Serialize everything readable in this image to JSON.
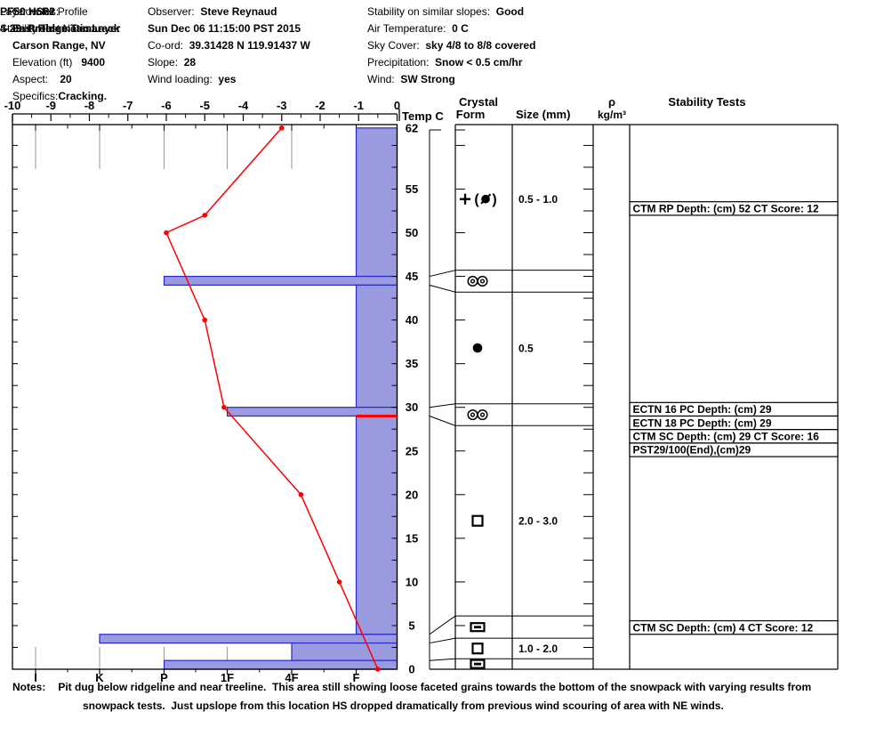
{
  "header": {
    "columns": [
      {
        "name": "location",
        "lines": [
          [
            {
              "t": "Snow Pit Profile",
              "b": false
            }
          ],
          [
            {
              "t": "East Ridge Tamarack",
              "b": true
            }
          ],
          [
            {
              "t": "Carson Range, NV",
              "b": true
            }
          ],
          [
            {
              "t": "Elevation (ft)   ",
              "b": false
            },
            {
              "t": "9400",
              "b": true
            }
          ],
          [
            {
              "t": "Aspect:    ",
              "b": false
            },
            {
              "t": "20",
              "b": true
            }
          ],
          [
            {
              "t": "Specifics:",
              "b": false
            },
            {
              "t": "Cracking.",
              "b": true
            }
          ]
        ]
      },
      {
        "name": "observer",
        "lines": [
          [
            {
              "t": "Observer:  ",
              "b": false
            },
            {
              "t": "Steve Reynaud",
              "b": true
            }
          ],
          [
            {
              "t": "Sun Dec 06 11:15:00 PST 2015",
              "b": true
            }
          ],
          [
            {
              "t": "Co-ord:  ",
              "b": false
            },
            {
              "t": "39.31428 N 119.91437 W",
              "b": true
            }
          ],
          [
            {
              "t": "Slope:  ",
              "b": false
            },
            {
              "t": "28",
              "b": true
            }
          ],
          [
            {
              "t": "Wind loading:  ",
              "b": false
            },
            {
              "t": "yes",
              "b": true
            }
          ]
        ]
      },
      {
        "name": "conditions",
        "lines": [
          [
            {
              "t": "Stability on similar slopes:  ",
              "b": false
            },
            {
              "t": "Good",
              "b": true
            }
          ],
          [
            {
              "t": "Air Temperature:  ",
              "b": false
            },
            {
              "t": "0 C",
              "b": true
            }
          ],
          [
            {
              "t": "Sky Cover:  ",
              "b": false
            },
            {
              "t": "sky 4/8 to 8/8 covered",
              "b": true
            }
          ],
          [
            {
              "t": "Precipitation:  ",
              "b": false
            },
            {
              "t": "Snow < 0.5 cm/hr",
              "b": true
            }
          ],
          [
            {
              "t": "Wind:  ",
              "b": false
            },
            {
              "t": "SW Strong",
              "b": true
            }
          ]
        ]
      },
      {
        "name": "pit-info",
        "lines": [
          [
            {
              "t": "PF50 HS62",
              "b": true
            }
          ],
          [
            {
              "t": "Stability Test Notes:",
              "b": false
            }
          ]
        ]
      },
      {
        "name": "layer-notes",
        "lines": [
          [
            {
              "t": "Layer notes:",
              "b": false
            }
          ],
          [
            {
              "t": "4-29: Problematic Layer",
              "b": true
            }
          ]
        ]
      }
    ]
  },
  "chart_data": {
    "type": "bar",
    "title": "Snow Pit Profile",
    "description": "Snow pit profile: hand-hardness bar profile vs depth, snow temperature line, crystal form/size per layer, stability tests",
    "depth_axis": {
      "unit": "cm",
      "surface_cm": 62,
      "base_cm": 0,
      "tick_labels": [
        62,
        55,
        50,
        45,
        40,
        35,
        30,
        25,
        20,
        15,
        10,
        5,
        0
      ]
    },
    "temperature_axis": {
      "label": "Temp C",
      "min": -10,
      "max": 0,
      "tick_labels": [
        -10,
        -9,
        -8,
        -7,
        -6,
        -5,
        -4,
        -3,
        -2,
        -1,
        0
      ]
    },
    "hardness_axis": {
      "tick_labels": [
        "I",
        "K",
        "P",
        "1F",
        "4F",
        "F"
      ]
    },
    "column_headers": {
      "temp": "Temp C",
      "crystal_line1": "Crystal",
      "crystal_line2": "Form",
      "size": "Size (mm)",
      "rho_line1": "ρ",
      "rho_line2": "kg/m³",
      "stability": "Stability Tests"
    },
    "temperature_profile": [
      {
        "depth_cm": 62,
        "temp_c": -3.0
      },
      {
        "depth_cm": 52,
        "temp_c": -5.0
      },
      {
        "depth_cm": 50,
        "temp_c": -6.0
      },
      {
        "depth_cm": 40,
        "temp_c": -5.0
      },
      {
        "depth_cm": 30,
        "temp_c": -4.5
      },
      {
        "depth_cm": 20,
        "temp_c": -2.5
      },
      {
        "depth_cm": 10,
        "temp_c": -1.5
      },
      {
        "depth_cm": 0,
        "temp_c": -0.5
      }
    ],
    "layers": [
      {
        "top_cm": 62,
        "bottom_cm": 45,
        "hardness": "F",
        "crystal_form": "precipitation-particles-decomposing",
        "symbol": "plus-df",
        "size_mm": "0.5 - 1.0",
        "row_top_cm": 62,
        "row_bottom_cm": 45.7
      },
      {
        "top_cm": 45,
        "bottom_cm": 44,
        "hardness": "P",
        "crystal_form": "melt-freeze-crust",
        "symbol": "double-circle",
        "size_mm": "",
        "row_top_cm": 45.7,
        "row_bottom_cm": 43.2
      },
      {
        "top_cm": 44,
        "bottom_cm": 30,
        "hardness": "F",
        "crystal_form": "rounded-grains",
        "symbol": "filled-circle",
        "size_mm": "0.5",
        "row_top_cm": 43.2,
        "row_bottom_cm": 30.4
      },
      {
        "top_cm": 30,
        "bottom_cm": 29,
        "hardness": "1F",
        "crystal_form": "melt-freeze-crust",
        "symbol": "double-circle",
        "size_mm": "",
        "row_top_cm": 30.4,
        "row_bottom_cm": 27.9
      },
      {
        "top_cm": 29,
        "bottom_cm": 4,
        "hardness": "F",
        "crystal_form": "facets",
        "symbol": "open-square",
        "size_mm": "2.0 - 3.0",
        "row_top_cm": 27.9,
        "row_bottom_cm": 6.1
      },
      {
        "top_cm": 4,
        "bottom_cm": 3,
        "hardness": "K",
        "crystal_form": "crust",
        "symbol": "crust-bar",
        "size_mm": "",
        "row_top_cm": 6.1,
        "row_bottom_cm": 3.55
      },
      {
        "top_cm": 3,
        "bottom_cm": 1,
        "hardness": "4F",
        "crystal_form": "facets",
        "symbol": "open-square",
        "size_mm": "1.0 - 2.0",
        "row_top_cm": 3.55,
        "row_bottom_cm": 1.2
      },
      {
        "top_cm": 1,
        "bottom_cm": 0,
        "hardness": "P",
        "crystal_form": "crust",
        "symbol": "crust-bar",
        "size_mm": "",
        "row_top_cm": 1.2,
        "row_bottom_cm": 0
      }
    ],
    "flagged_layer_line": {
      "depth_cm": 29,
      "color": "#ff0000"
    },
    "stability_tests": [
      {
        "text": "CTM RP Depth: (cm) 52 CT Score: 12",
        "depth_cm": 52
      },
      {
        "text": "ECTN 16 PC Depth: (cm) 29",
        "depth_cm": 29
      },
      {
        "text": "ECTN 18 PC Depth: (cm) 29",
        "depth_cm": 29
      },
      {
        "text": "CTM SC Depth: (cm) 29 CT Score: 16",
        "depth_cm": 29
      },
      {
        "text": "PST29/100(End),(cm)29",
        "depth_cm": 29
      },
      {
        "text": "CTM SC Depth: (cm) 4 CT Score: 12",
        "depth_cm": 4
      }
    ],
    "colors": {
      "bar_fill": "#9a9ade",
      "bar_border": "#2828c8",
      "temp_line": "#ff0000",
      "grid_gray": "#999999",
      "axis_black": "#000000"
    }
  },
  "notes": {
    "label": "Notes:",
    "line1": "Pit dug below ridgeline and near treeline.  This area still showing loose faceted grains towards the bottom of the snowpack with varying results from",
    "line2": "snowpack tests.  Just upslope from this location HS dropped dramatically from previous wind scouring of area with NE winds."
  }
}
